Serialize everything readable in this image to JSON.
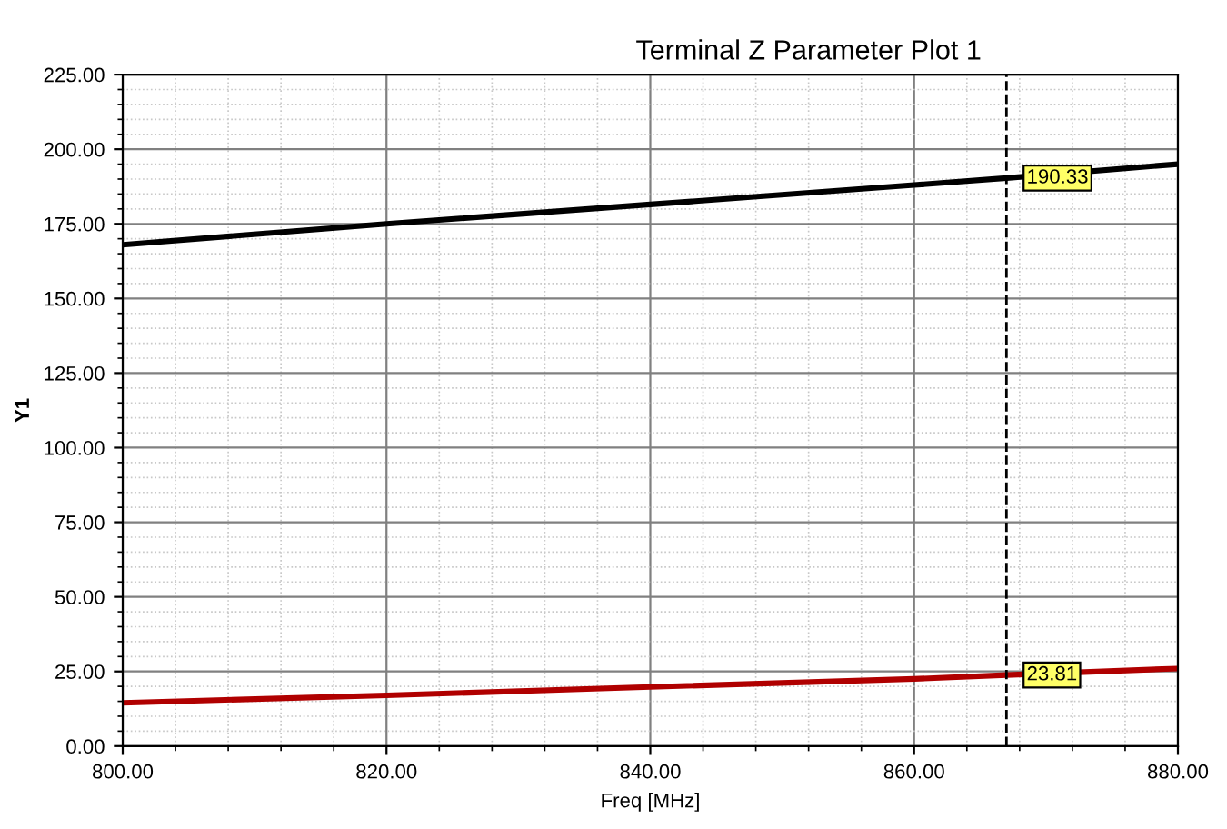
{
  "chart_data": {
    "type": "line",
    "title": "Terminal Z Parameter Plot 1",
    "xlabel": "Freq [MHz]",
    "ylabel": "Y1",
    "series": [
      {
        "color": "#000000",
        "x": [
          800,
          820,
          840,
          860,
          867,
          880
        ],
        "values": [
          168,
          175,
          181.5,
          188,
          190.33,
          195
        ]
      },
      {
        "color": "#b00000",
        "x": [
          800,
          820,
          840,
          860,
          867,
          880
        ],
        "values": [
          14.5,
          17,
          19.8,
          22.5,
          23.81,
          26
        ]
      }
    ],
    "xlim": [
      800,
      880
    ],
    "ylim": [
      0,
      225
    ],
    "xticks": [
      {
        "value": 800,
        "label": "800.00"
      },
      {
        "value": 820,
        "label": "820.00"
      },
      {
        "value": 840,
        "label": "840.00"
      },
      {
        "value": 860,
        "label": "860.00"
      },
      {
        "value": 880,
        "label": "880.00"
      }
    ],
    "yticks": [
      {
        "value": 0,
        "label": "0.00"
      },
      {
        "value": 25,
        "label": "25.00"
      },
      {
        "value": 50,
        "label": "50.00"
      },
      {
        "value": 75,
        "label": "75.00"
      },
      {
        "value": 100,
        "label": "100.00"
      },
      {
        "value": 125,
        "label": "125.00"
      },
      {
        "value": 150,
        "label": "150.00"
      },
      {
        "value": 175,
        "label": "175.00"
      },
      {
        "value": 200,
        "label": "200.00"
      },
      {
        "value": 225,
        "label": "225.00"
      }
    ],
    "ref_lines": [
      {
        "axis": "x",
        "value": 867,
        "color": "#000000",
        "line_style": "dashed"
      }
    ],
    "annotations": [
      {
        "text": "190.33",
        "x": 867,
        "y": 190.33
      },
      {
        "text": "23.81",
        "x": 867,
        "y": 23.81
      }
    ],
    "grid": true,
    "legend": false
  }
}
